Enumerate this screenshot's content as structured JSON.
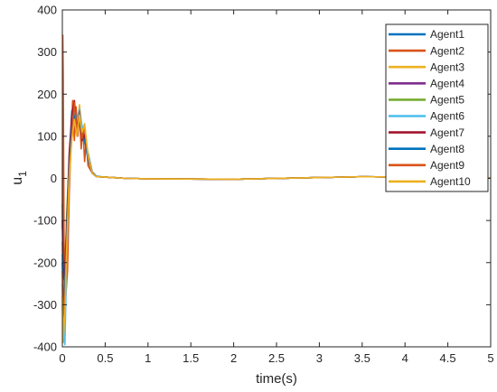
{
  "chart_data": {
    "type": "line",
    "title": "",
    "xlabel": "time(s)",
    "ylabel": "u",
    "ylabel_subscript": "1",
    "xlim": [
      0,
      5
    ],
    "ylim": [
      -400,
      400
    ],
    "xticks": [
      0,
      0.5,
      1,
      1.5,
      2,
      2.5,
      3,
      3.5,
      4,
      4.5,
      5
    ],
    "xtick_labels": [
      "0",
      "0.5",
      "1",
      "1.5",
      "2",
      "2.5",
      "3",
      "3.5",
      "4",
      "4.5",
      "5"
    ],
    "yticks": [
      -400,
      -300,
      -200,
      -100,
      0,
      100,
      200,
      300,
      400
    ],
    "ytick_labels": [
      "-400",
      "-300",
      "-200",
      "-100",
      "0",
      "100",
      "200",
      "300",
      "400"
    ],
    "grid": false,
    "legend_position": "top-right",
    "series": [
      {
        "name": "Agent1",
        "color": "#0072BD",
        "x": [
          0,
          0.01,
          0.03,
          0.05,
          0.08,
          0.11,
          0.14,
          0.17,
          0.2,
          0.23,
          0.26,
          0.3,
          0.35,
          0.4,
          0.5,
          0.75,
          1,
          2,
          3,
          3.5,
          4,
          5
        ],
        "y": [
          -60,
          -180,
          -260,
          -210,
          20,
          160,
          175,
          130,
          150,
          120,
          95,
          60,
          15,
          5,
          3,
          0,
          -1,
          -2,
          2,
          4,
          3,
          1
        ]
      },
      {
        "name": "Agent2",
        "color": "#D95319",
        "x": [
          0,
          0.005,
          0.01,
          0.02,
          0.04,
          0.06,
          0.08,
          0.1,
          0.12,
          0.14,
          0.16,
          0.18,
          0.2,
          0.22,
          0.24,
          0.26,
          0.28,
          0.3,
          0.35,
          0.4,
          0.5,
          0.75,
          1,
          2,
          3,
          3.5,
          4,
          5
        ],
        "y": [
          -120,
          340,
          250,
          -150,
          -280,
          -220,
          -40,
          80,
          185,
          90,
          170,
          100,
          150,
          70,
          120,
          40,
          90,
          30,
          12,
          4,
          3,
          0,
          -1,
          -2,
          2,
          4,
          3,
          1
        ]
      },
      {
        "name": "Agent3",
        "color": "#EDB120",
        "x": [
          0,
          0.01,
          0.03,
          0.05,
          0.08,
          0.11,
          0.14,
          0.17,
          0.2,
          0.23,
          0.26,
          0.3,
          0.35,
          0.4,
          0.5,
          0.75,
          1,
          2,
          3,
          3.5,
          4,
          5
        ],
        "y": [
          -300,
          -390,
          -330,
          -150,
          30,
          110,
          160,
          120,
          175,
          110,
          130,
          50,
          12,
          4,
          3,
          0,
          -1,
          -2,
          2,
          4,
          3,
          1
        ]
      },
      {
        "name": "Agent4",
        "color": "#7E2F8E",
        "x": [
          0,
          0.01,
          0.03,
          0.05,
          0.08,
          0.11,
          0.14,
          0.17,
          0.2,
          0.23,
          0.26,
          0.3,
          0.35,
          0.4,
          0.5,
          0.75,
          1,
          2,
          3,
          3.5,
          4,
          5
        ],
        "y": [
          -200,
          -310,
          -240,
          -100,
          40,
          140,
          150,
          110,
          140,
          105,
          100,
          45,
          12,
          4,
          3,
          0,
          -1,
          -2,
          2,
          4,
          3,
          1
        ]
      },
      {
        "name": "Agent5",
        "color": "#77AC30",
        "x": [
          0,
          0.01,
          0.03,
          0.05,
          0.08,
          0.11,
          0.14,
          0.17,
          0.2,
          0.23,
          0.26,
          0.3,
          0.35,
          0.4,
          0.5,
          0.75,
          1,
          2,
          3,
          3.5,
          4,
          5
        ],
        "y": [
          -150,
          -280,
          -230,
          -90,
          50,
          130,
          165,
          115,
          160,
          100,
          110,
          55,
          12,
          4,
          3,
          0,
          -1,
          -2,
          2,
          4,
          3,
          1
        ]
      },
      {
        "name": "Agent6",
        "color": "#4DBEEE",
        "x": [
          0,
          0.01,
          0.03,
          0.05,
          0.08,
          0.11,
          0.14,
          0.17,
          0.2,
          0.23,
          0.26,
          0.3,
          0.35,
          0.4,
          0.5,
          0.75,
          1,
          2,
          3,
          3.5,
          4,
          5
        ],
        "y": [
          -250,
          -360,
          -395,
          -200,
          20,
          120,
          170,
          140,
          165,
          125,
          115,
          55,
          12,
          4,
          3,
          0,
          -1,
          -2,
          2,
          4,
          3,
          1
        ]
      },
      {
        "name": "Agent7",
        "color": "#A2142F",
        "x": [
          0,
          0.01,
          0.03,
          0.05,
          0.08,
          0.11,
          0.14,
          0.17,
          0.2,
          0.23,
          0.26,
          0.3,
          0.35,
          0.4,
          0.5,
          0.75,
          1,
          2,
          3,
          3.5,
          4,
          5
        ],
        "y": [
          -100,
          -240,
          -210,
          -120,
          60,
          150,
          185,
          120,
          145,
          90,
          105,
          50,
          12,
          4,
          3,
          0,
          -1,
          -2,
          2,
          4,
          3,
          1
        ]
      },
      {
        "name": "Agent8",
        "color": "#0072BD",
        "x": [
          0,
          0.01,
          0.03,
          0.05,
          0.08,
          0.11,
          0.14,
          0.17,
          0.2,
          0.23,
          0.26,
          0.3,
          0.35,
          0.4,
          0.5,
          0.75,
          1,
          2,
          3,
          3.5,
          4,
          5
        ],
        "y": [
          -180,
          -300,
          -250,
          -130,
          30,
          120,
          150,
          125,
          135,
          100,
          90,
          45,
          12,
          4,
          3,
          0,
          -1,
          -2,
          2,
          4,
          3,
          1
        ]
      },
      {
        "name": "Agent9",
        "color": "#D95319",
        "x": [
          0,
          0.01,
          0.03,
          0.05,
          0.08,
          0.11,
          0.14,
          0.17,
          0.2,
          0.23,
          0.26,
          0.3,
          0.35,
          0.4,
          0.5,
          0.75,
          1,
          2,
          3,
          3.5,
          4,
          5
        ],
        "y": [
          -220,
          -330,
          -280,
          -160,
          10,
          100,
          180,
          110,
          160,
          95,
          120,
          50,
          12,
          4,
          3,
          0,
          -1,
          -2,
          2,
          4,
          3,
          1
        ]
      },
      {
        "name": "Agent10",
        "color": "#EDB120",
        "x": [
          0,
          0.01,
          0.03,
          0.05,
          0.08,
          0.11,
          0.14,
          0.17,
          0.2,
          0.23,
          0.26,
          0.3,
          0.35,
          0.4,
          0.5,
          0.75,
          1,
          2,
          3,
          3.5,
          4,
          5
        ],
        "y": [
          -280,
          -380,
          -320,
          -170,
          0,
          90,
          140,
          100,
          150,
          110,
          125,
          55,
          12,
          4,
          3,
          0,
          -1,
          -2,
          2,
          4,
          3,
          1
        ]
      }
    ]
  }
}
